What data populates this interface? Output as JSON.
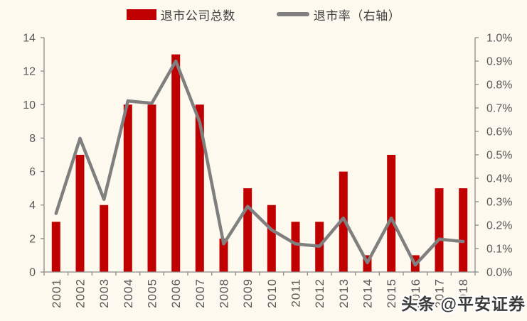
{
  "legend": {
    "bars_label": "退市公司总数",
    "line_label": "退市率（右轴）"
  },
  "watermark": "头条 @平安证券",
  "colors": {
    "background": "#fdf9ee",
    "bar": "#c00000",
    "line": "#7f7f7f",
    "axis": "#8c8c8c",
    "tick_label": "#595959",
    "legend_text": "#3f3f3f",
    "watermark_text": "#3a3a3a"
  },
  "chart_data": {
    "type": "bar",
    "title": "",
    "xlabel": "",
    "ylabel": "",
    "categories": [
      "2001",
      "2002",
      "2003",
      "2004",
      "2005",
      "2006",
      "2007",
      "2008",
      "2009",
      "2010",
      "2011",
      "2012",
      "2013",
      "2014",
      "2015",
      "2016",
      "2017",
      "2018"
    ],
    "series": [
      {
        "name": "退市公司总数",
        "type": "bar",
        "axis": "left",
        "values": [
          3,
          7,
          4,
          10,
          10,
          13,
          10,
          2,
          5,
          4,
          3,
          3,
          6,
          1,
          7,
          1,
          5,
          5
        ]
      },
      {
        "name": "退市率（右轴）",
        "type": "line",
        "axis": "right",
        "unit": "%",
        "values": [
          0.25,
          0.57,
          0.31,
          0.73,
          0.72,
          0.9,
          0.64,
          0.12,
          0.28,
          0.18,
          0.12,
          0.11,
          0.23,
          0.04,
          0.23,
          0.03,
          0.14,
          0.13
        ]
      }
    ],
    "left_axis": {
      "min": 0,
      "max": 14,
      "tick_step": 2,
      "tick_labels": [
        "0",
        "2",
        "4",
        "6",
        "8",
        "10",
        "12",
        "14"
      ]
    },
    "right_axis": {
      "min": 0,
      "max": 1.0,
      "tick_step": 0.1,
      "tick_labels": [
        "0.0%",
        "0.1%",
        "0.2%",
        "0.3%",
        "0.4%",
        "0.5%",
        "0.6%",
        "0.7%",
        "0.8%",
        "0.9%",
        "1.0%"
      ]
    },
    "grid": false,
    "legend_position": "top"
  }
}
